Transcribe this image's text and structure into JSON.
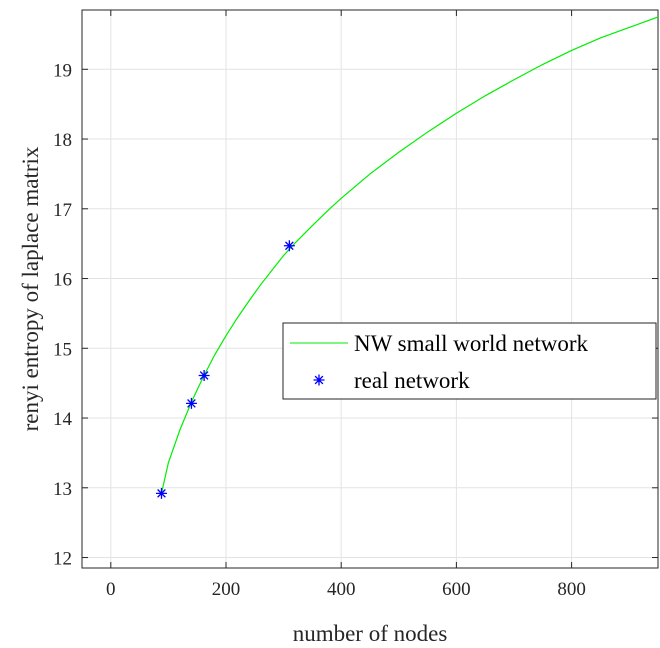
{
  "chart_data": {
    "type": "line",
    "title": "",
    "xlabel": "number of nodes",
    "ylabel": "renyi entropy of laplace matrix",
    "xlim": [
      -50,
      950
    ],
    "ylim": [
      11.85,
      19.85
    ],
    "xticks": [
      0,
      200,
      400,
      600,
      800
    ],
    "yticks": [
      12,
      13,
      14,
      15,
      16,
      17,
      18,
      19
    ],
    "xtick_labels": [
      "0",
      "200",
      "400",
      "600",
      "800"
    ],
    "ytick_labels": [
      "12",
      "13",
      "14",
      "15",
      "16",
      "17",
      "18",
      "19"
    ],
    "grid": true,
    "legend_position": "right",
    "series": [
      {
        "name": "NW small world network",
        "kind": "line",
        "color": "#00ee00",
        "x": [
          88,
          100,
          120,
          140,
          160,
          180,
          200,
          220,
          240,
          260,
          280,
          300,
          320,
          350,
          380,
          400,
          450,
          500,
          550,
          600,
          650,
          700,
          750,
          800,
          850,
          900,
          950
        ],
        "y": [
          12.92,
          13.36,
          13.83,
          14.23,
          14.58,
          14.9,
          15.18,
          15.44,
          15.68,
          15.91,
          16.12,
          16.33,
          16.51,
          16.76,
          17.0,
          17.15,
          17.5,
          17.81,
          18.1,
          18.37,
          18.62,
          18.85,
          19.07,
          19.27,
          19.45,
          19.6,
          19.75
        ]
      },
      {
        "name": "real network",
        "kind": "scatter",
        "marker": "*",
        "color": "#0000ff",
        "x": [
          88,
          140,
          162,
          310
        ],
        "y": [
          12.92,
          14.21,
          14.61,
          16.47
        ]
      }
    ]
  }
}
